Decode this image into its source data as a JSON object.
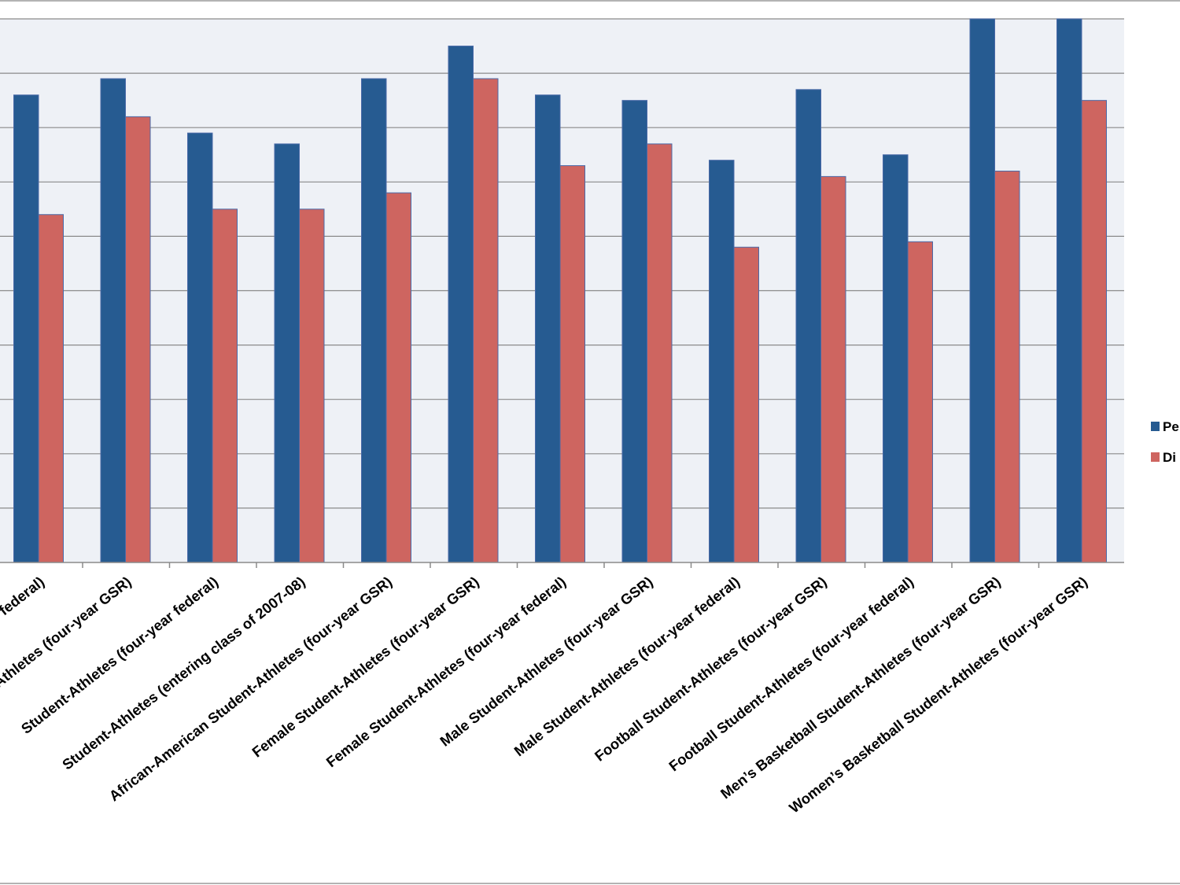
{
  "colors": {
    "series_0": "#265b91",
    "series_1": "#ce6560"
  },
  "chart_data": {
    "type": "bar",
    "title": "",
    "xlabel": "",
    "ylabel": "",
    "ylim": [
      0,
      100
    ],
    "gridlines": true,
    "legend_position": "right",
    "categories": [
      "Student-Athletes (four-year federal)",
      "Student-Athletes (four-year GSR)",
      "Student-Athletes (four-year federal)",
      "Student-Athletes (entering class of 2007-08)",
      "African-American Student-Athletes (four-year GSR)",
      "Female Student-Athletes (four-year GSR)",
      "Female Student-Athletes (four-year federal)",
      "Male Student-Athletes (four-year GSR)",
      "Male Student-Athletes (four-year federal)",
      "Football Student-Athletes (four-year GSR)",
      "Football Student-Athletes (four-year federal)",
      "Men’s Basketball Student-Athletes (four-year GSR)",
      "Women’s Basketball Student-Athletes (four-year GSR)"
    ],
    "series": [
      {
        "name": "Pe",
        "values": [
          86,
          89,
          79,
          77,
          89,
          95,
          86,
          85,
          74,
          87,
          75,
          100,
          100
        ]
      },
      {
        "name": "Di",
        "values": [
          64,
          82,
          65,
          65,
          68,
          89,
          73,
          77,
          58,
          71,
          59,
          72,
          85
        ]
      }
    ]
  }
}
